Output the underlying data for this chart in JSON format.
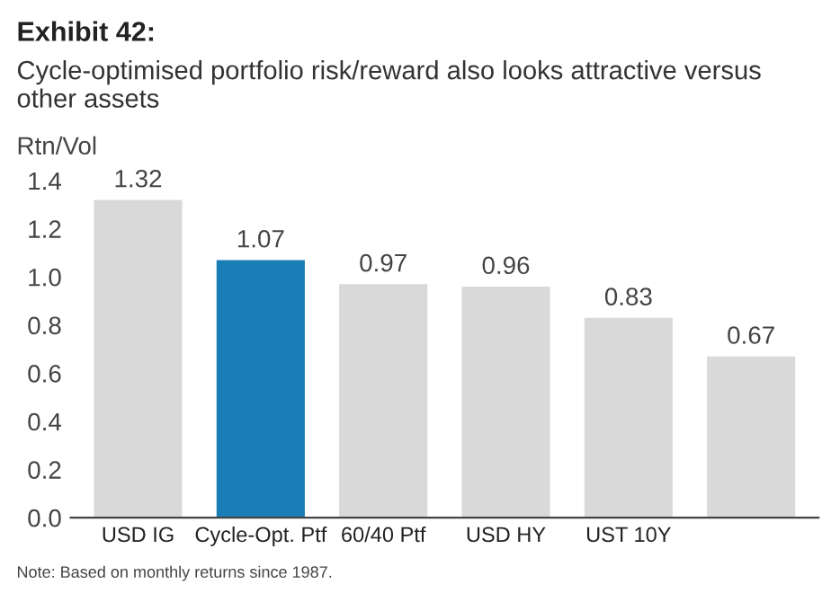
{
  "chart_data": {
    "type": "bar",
    "title": "Exhibit 42:",
    "subtitle": "Cycle-optimised portfolio risk/reward also looks attractive versus other assets",
    "ylabel": "Rtn/Vol",
    "categories": [
      "USD IG",
      "Cycle-Opt. Ptf",
      "60/40 Ptf",
      "USD HY",
      "UST 10Y",
      null
    ],
    "values": [
      1.32,
      1.07,
      0.97,
      0.96,
      0.83,
      0.67
    ],
    "colors": [
      "#d9d9d9",
      "#1a7db5",
      "#d9d9d9",
      "#d9d9d9",
      "#d9d9d9",
      "#d9d9d9"
    ],
    "ylim": [
      0,
      1.4
    ],
    "yticks": [
      {
        "value": 0,
        "label": "0.0"
      },
      {
        "value": 0.2,
        "label": "0.2"
      },
      {
        "value": 0.4,
        "label": "0.4"
      },
      {
        "value": 0.6,
        "label": "0.6"
      },
      {
        "value": 0.8,
        "label": "0.8"
      },
      {
        "value": 1.0,
        "label": "1.0"
      },
      {
        "value": 1.2,
        "label": "1.2"
      },
      {
        "value": 1.4,
        "label": "1.4"
      }
    ],
    "grid": false,
    "data_labels": true,
    "annotations": [
      "Note: Based on monthly returns since 1987."
    ]
  }
}
